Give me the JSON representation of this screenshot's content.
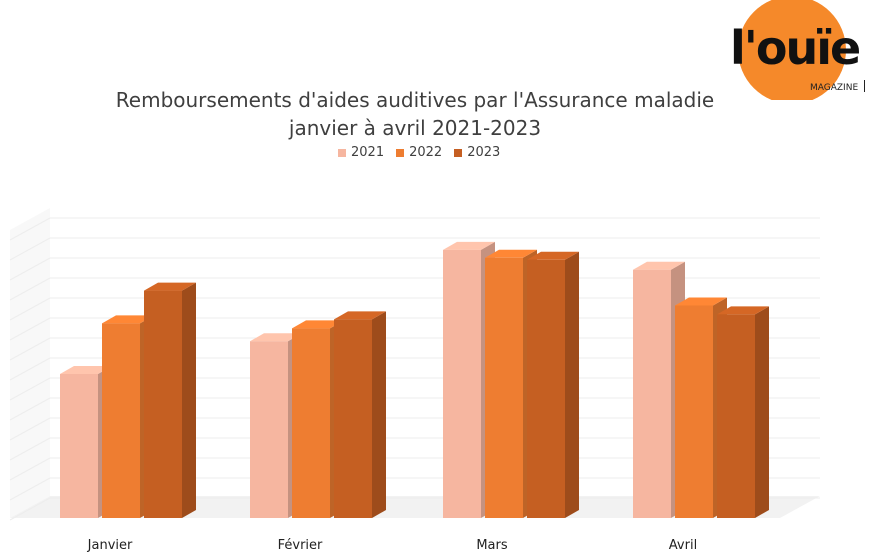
{
  "brand": {
    "logo_text": "l'ouïe",
    "logo_subtext": "MAGAZINE",
    "circle_color": "#f5892a"
  },
  "chart_data": {
    "type": "bar",
    "title": "Remboursements d'aides auditives par l'Assurance maladie",
    "subtitle": "janvier à avril 2021-2023",
    "categories": [
      "Janvier",
      "Février",
      "Mars",
      "Avril"
    ],
    "series": [
      {
        "name": "2021",
        "color": "#f6b6a0",
        "values": [
          145,
          178,
          270,
          250
        ]
      },
      {
        "name": "2022",
        "color": "#ee7d31",
        "values": [
          196,
          191,
          262,
          214
        ]
      },
      {
        "name": "2023",
        "color": "#c55f22",
        "values": [
          229,
          200,
          260,
          205
        ]
      }
    ],
    "ylim": [
      0,
      290
    ],
    "grid": true,
    "legend_position": "top"
  }
}
